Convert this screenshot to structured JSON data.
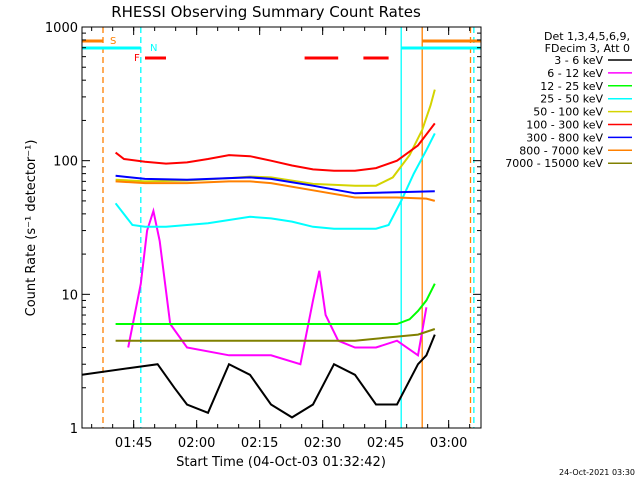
{
  "chart_data": {
    "type": "line",
    "title": "RHESSI Observing Summary Count Rates",
    "xlabel": "Start Time (04-Oct-03 01:32:42)",
    "ylabel": "Count Rate (s⁻¹ detector⁻¹)",
    "x_unit": "minutes since 01:32:42",
    "xlim": [
      0,
      95
    ],
    "ylim": [
      1,
      1000
    ],
    "y_scale": "log",
    "grid": false,
    "x_ticks": [
      {
        "label": "01:45",
        "value": 12.3
      },
      {
        "label": "02:00",
        "value": 27.3
      },
      {
        "label": "02:15",
        "value": 42.3
      },
      {
        "label": "02:30",
        "value": 57.3
      },
      {
        "label": "02:45",
        "value": 72.3
      },
      {
        "label": "03:00",
        "value": 87.3
      }
    ],
    "y_ticks": [
      {
        "label": "1",
        "value": 1
      },
      {
        "label": "10",
        "value": 10
      },
      {
        "label": "100",
        "value": 100
      },
      {
        "label": "1000",
        "value": 1000
      }
    ],
    "legend_header": [
      "Det 1,3,4,5,6,9,",
      "FDecim 3, Att 0"
    ],
    "legend_position": "right",
    "series": [
      {
        "name": "3 - 6 keV",
        "color": "#000000",
        "x": [
          0,
          11,
          18,
          22,
          25,
          30,
          35,
          40,
          45,
          50,
          55,
          60,
          65,
          70,
          75,
          80,
          82,
          84
        ],
        "values": [
          2.5,
          2.8,
          3.0,
          2.0,
          1.5,
          1.3,
          3.0,
          2.5,
          1.5,
          1.2,
          1.5,
          3.0,
          2.5,
          1.5,
          1.5,
          3.0,
          3.5,
          5.0
        ]
      },
      {
        "name": "6 - 12 keV",
        "color": "#ff00ff",
        "x": [
          11,
          14,
          15.5,
          17,
          18.5,
          21,
          25,
          35,
          45,
          52,
          55,
          56.5,
          58,
          61,
          65,
          70,
          75,
          80,
          82
        ],
        "values": [
          4.0,
          12,
          30,
          42,
          25,
          6,
          4.0,
          3.5,
          3.5,
          3.0,
          9,
          15,
          7,
          4.5,
          4.0,
          4.0,
          4.5,
          3.5,
          8
        ]
      },
      {
        "name": "12 - 25 keV",
        "color": "#00ff00",
        "x": [
          8,
          20,
          35,
          50,
          65,
          75,
          78,
          80,
          82,
          84
        ],
        "values": [
          6.0,
          6.0,
          6.0,
          6.0,
          6.0,
          6.0,
          6.5,
          7.5,
          9,
          12
        ]
      },
      {
        "name": "25 - 50 keV",
        "color": "#00ffff",
        "x": [
          8,
          12,
          15,
          20,
          25,
          30,
          35,
          40,
          45,
          50,
          55,
          60,
          65,
          70,
          73,
          76,
          79,
          82,
          84
        ],
        "values": [
          48,
          33,
          32,
          32,
          33,
          34,
          36,
          38,
          37,
          35,
          32,
          31,
          31,
          31,
          33,
          50,
          80,
          120,
          160
        ]
      },
      {
        "name": "50 - 100 keV",
        "color": "#d4d400",
        "x": [
          8,
          15,
          25,
          35,
          40,
          45,
          55,
          65,
          70,
          74,
          78,
          81,
          83,
          84
        ],
        "values": [
          72,
          70,
          71,
          74,
          76,
          75,
          67,
          65,
          65,
          75,
          110,
          170,
          260,
          340
        ]
      },
      {
        "name": "100 - 300 keV",
        "color": "#ff0000",
        "x": [
          8,
          10,
          15,
          20,
          25,
          30,
          35,
          40,
          45,
          50,
          55,
          60,
          65,
          70,
          75,
          80,
          84
        ],
        "values": [
          115,
          103,
          98,
          95,
          97,
          103,
          110,
          108,
          100,
          92,
          86,
          84,
          84,
          88,
          100,
          130,
          190
        ]
      },
      {
        "name": "300 - 800 keV",
        "color": "#0000ff",
        "x": [
          8,
          15,
          25,
          35,
          40,
          45,
          55,
          65,
          75,
          84
        ],
        "values": [
          77,
          73,
          72,
          74,
          75,
          73,
          65,
          57,
          58,
          59
        ]
      },
      {
        "name": "800 - 7000 keV",
        "color": "#ff8000",
        "x": [
          8,
          15,
          25,
          35,
          40,
          45,
          55,
          65,
          75,
          82,
          84
        ],
        "values": [
          70,
          68,
          68,
          70,
          70,
          68,
          60,
          53,
          53,
          52,
          50
        ]
      },
      {
        "name": "7000 - 15000 keV",
        "color": "#808000",
        "x": [
          8,
          20,
          35,
          50,
          65,
          80,
          84
        ],
        "values": [
          4.5,
          4.5,
          4.5,
          4.5,
          4.5,
          5.0,
          5.5
        ]
      }
    ],
    "annotations": [
      {
        "label": "S",
        "color": "#ff8000"
      },
      {
        "label": "N",
        "color": "#00ffff"
      },
      {
        "label": "F",
        "color": "#ff0000"
      }
    ],
    "vertical_markers": [
      {
        "x": 5,
        "color": "#ff8000",
        "style": "dashed"
      },
      {
        "x": 14,
        "color": "#00ffff",
        "style": "dashed"
      },
      {
        "x": 76,
        "color": "#00ffff",
        "style": "solid"
      },
      {
        "x": 81,
        "color": "#ff8000",
        "style": "solid"
      },
      {
        "x": 92.5,
        "color": "#ff8000",
        "style": "dashed"
      },
      {
        "x": 93.3,
        "color": "#00ffff",
        "style": "dashed"
      }
    ],
    "state_bars": [
      {
        "label": "S",
        "color": "#ff8000",
        "segments": [
          [
            0,
            5
          ],
          [
            81,
            95
          ]
        ]
      },
      {
        "label": "N",
        "color": "#00ffff",
        "segments": [
          [
            0,
            14
          ],
          [
            76,
            95
          ]
        ]
      },
      {
        "label": "F",
        "color": "#ff0000",
        "segments": [
          [
            15,
            20
          ],
          [
            53,
            61
          ],
          [
            67,
            73
          ]
        ]
      }
    ]
  },
  "footer": {
    "timestamp": "24-Oct-2021 03:30"
  }
}
